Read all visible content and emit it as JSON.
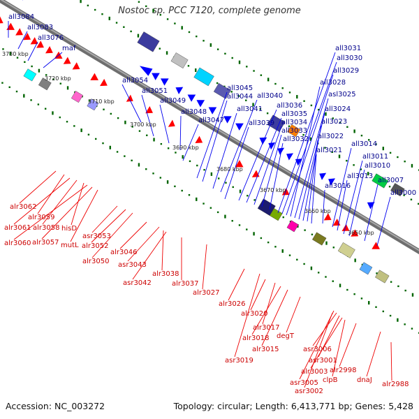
{
  "title": "Nostoc sp. PCC 7120, complete genome",
  "footer": {
    "accession": "Accession: NC_003272",
    "summary": "Topology: circular; Length: 6,413,771 bp; Genes: 5,428"
  },
  "colors": {
    "backbone": "#8c8c8c",
    "minus_strand": "#0000ff",
    "plus_strand": "#ff0000",
    "minus_label": "#00008b",
    "plus_label": "#cc0000",
    "tick": "#006400"
  },
  "ticks": [
    "3730 kbp",
    "3720 kbp",
    "3710 kbp",
    "3700 kbp",
    "3690 kbp",
    "3680 kbp",
    "3670 kbp",
    "3660 kbp",
    "3650 kbp"
  ],
  "minus_genes": [
    "all3084",
    "all3083",
    "all3076",
    "maf",
    "all3054",
    "all3051",
    "all3049",
    "all3048",
    "all3047",
    "all3045",
    "all3044",
    "all3041",
    "all3040",
    "all3039",
    "all3036",
    "all3035",
    "all3034",
    "all3033",
    "all3032",
    "all3031",
    "all3030",
    "all3029",
    "all3028",
    "asl3025",
    "all3024",
    "all3023",
    "all3022",
    "all3021",
    "all3016",
    "all3014",
    "all3013",
    "all3011",
    "all3010",
    "all3007",
    "all3000"
  ],
  "plus_genes": [
    "alr3062",
    "alr3059",
    "alr3061",
    "alr3058",
    "hisD",
    "alr3060",
    "alr3057",
    "mutL",
    "asr3053",
    "alr3052",
    "alr3046",
    "alr3050",
    "asr3043",
    "alr3038",
    "asr3042",
    "alr3037",
    "alr3027",
    "alr3026",
    "alr3020",
    "alr3017",
    "alr3018",
    "degT",
    "alr3015",
    "asr3019",
    "asr3006",
    "asr3001",
    "alr3003",
    "clpB",
    "alr2998",
    "dnaJ",
    "asr3005",
    "asr3002",
    "alr2988"
  ]
}
